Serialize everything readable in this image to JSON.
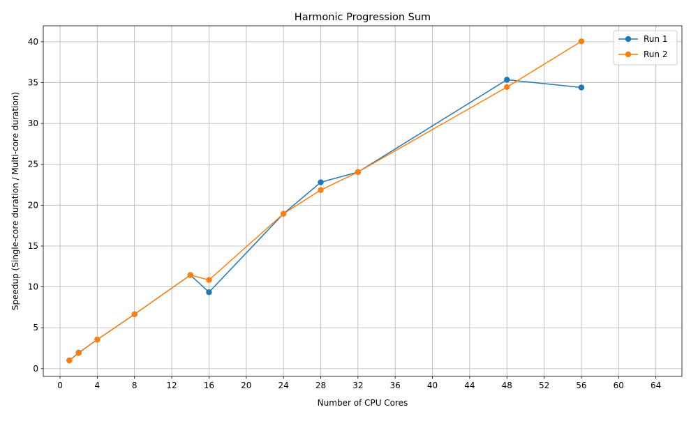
{
  "chart_data": {
    "type": "line",
    "title": "Harmonic Progression Sum",
    "xlabel": "Number of CPU Cores",
    "ylabel": "Speedup (Single-core duration / Multi-core duration)",
    "xlim": [
      -1.8,
      66.8
    ],
    "ylim": [
      -0.95,
      41.95
    ],
    "x_ticks": [
      0,
      4,
      8,
      12,
      16,
      20,
      24,
      28,
      32,
      36,
      40,
      44,
      48,
      52,
      56,
      60,
      64
    ],
    "y_ticks": [
      0,
      5,
      10,
      15,
      20,
      25,
      30,
      35,
      40
    ],
    "grid": true,
    "legend_position": "top-right",
    "series": [
      {
        "name": "Run 1",
        "color": "#1f77b4",
        "x": [
          1,
          2,
          4,
          8,
          14,
          16,
          24,
          28,
          32,
          48,
          56
        ],
        "y": [
          1.0,
          1.95,
          3.55,
          6.65,
          11.45,
          9.35,
          18.95,
          22.8,
          24.05,
          35.35,
          34.4
        ]
      },
      {
        "name": "Run 2",
        "color": "#ff7f0e",
        "x": [
          1,
          2,
          4,
          8,
          14,
          16,
          24,
          28,
          32,
          48,
          56
        ],
        "y": [
          1.0,
          1.9,
          3.55,
          6.65,
          11.45,
          10.85,
          18.95,
          21.85,
          24.05,
          34.45,
          40.05
        ]
      }
    ]
  }
}
